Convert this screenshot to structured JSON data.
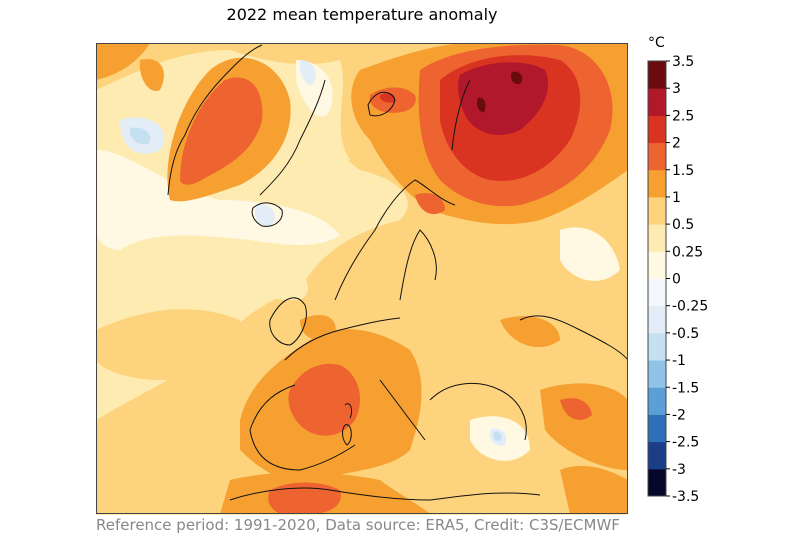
{
  "title": "2022 mean temperature anomaly",
  "credit": "Reference period: 1991-2020, Data source: ERA5, Credit: C3S/ECMWF",
  "colorbar": {
    "unit": "°C",
    "levels": [
      "-3.5",
      "-3",
      "-2.5",
      "-2",
      "-1.5",
      "-1",
      "-0.5",
      "-0.25",
      "0",
      "0.25",
      "0.5",
      "1",
      "1.5",
      "2",
      "2.5",
      "3",
      "3.5"
    ],
    "colors": [
      "#07072c",
      "#1b3e86",
      "#2f6fb7",
      "#5b9fd6",
      "#8fc3e7",
      "#c4e0f1",
      "#e2edf7",
      "#f4f8fc",
      "#fff8e2",
      "#feebb2",
      "#fdd47d",
      "#f6a032",
      "#ee6431",
      "#d93422",
      "#b2182b",
      "#6a0c0e"
    ]
  },
  "map": {
    "region": "Europe, North Atlantic and Arctic",
    "field": "2022 mean temperature anomaly"
  }
}
